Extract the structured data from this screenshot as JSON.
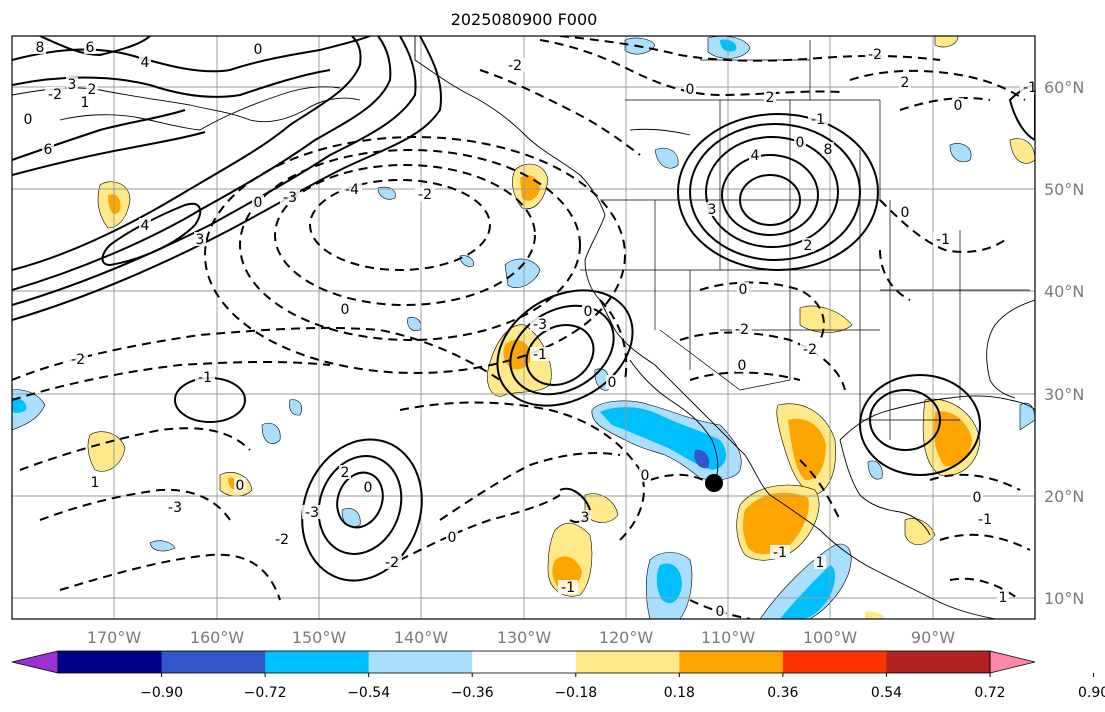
{
  "title": "2025080900 F000",
  "map": {
    "lat_labels": [
      "60°N",
      "50°N",
      "40°N",
      "30°N",
      "20°N",
      "10°N"
    ],
    "lon_labels": [
      "170°W",
      "160°W",
      "150°W",
      "140°W",
      "130°W",
      "120°W",
      "110°W",
      "100°W",
      "90°W"
    ],
    "contour_labels": [
      "8",
      "6",
      "4",
      "0",
      "-2",
      "3",
      "2",
      "1",
      "0",
      "6",
      "4",
      "3",
      "0",
      "-3",
      "-4",
      "-2",
      "0",
      "-2",
      "-1",
      "1",
      "-3",
      "2",
      "0",
      "-2",
      "-3",
      "-2",
      "0",
      "-2",
      "0",
      "2",
      "4",
      "8",
      "3",
      "2",
      "0",
      "-2",
      "0",
      "-2",
      "0",
      "-1",
      "2",
      "0",
      "-2",
      "-1",
      "0",
      "-1",
      "0",
      "3",
      "-1",
      "0",
      "-1",
      "1",
      "0",
      "-1",
      "1",
      "0",
      "0",
      "-1",
      "-3",
      "0"
    ],
    "marker": "black-dot"
  },
  "colorbar": {
    "tick_labels": [
      "−0.90",
      "−0.72",
      "−0.54",
      "−0.36",
      "−0.18",
      "0.18",
      "0.36",
      "0.54",
      "0.72",
      "0.90"
    ],
    "colors": [
      "#9b30d6",
      "#00008b",
      "#3355cc",
      "#00bfff",
      "#aadeff",
      "#ffffff",
      "#ffe98a",
      "#ffa500",
      "#ff3300",
      "#b22222",
      "#ff88aa"
    ]
  }
}
